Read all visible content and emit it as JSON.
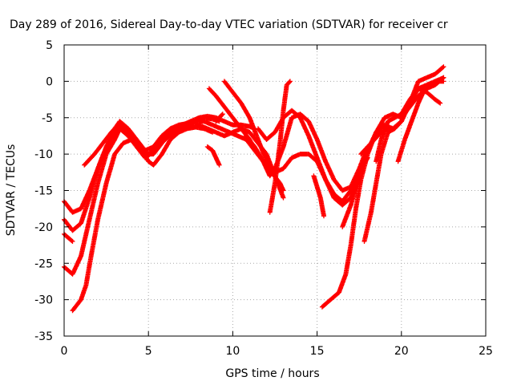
{
  "chart_data": {
    "type": "scatter",
    "title": "Day 289 of 2016, Sidereal Day-to-day VTEC variation (SDTVAR) for receiver cr",
    "xlabel": "GPS time / hours",
    "ylabel": "SDTVAR / TECUs",
    "xlim": [
      0,
      25
    ],
    "ylim": [
      -35,
      5
    ],
    "xticks": [
      "0",
      "5",
      "10",
      "15",
      "20",
      "25"
    ],
    "yticks": [
      "5",
      "0",
      "-5",
      "-10",
      "-15",
      "-20",
      "-25",
      "-30",
      "-35"
    ],
    "grid": true,
    "marker": "plus",
    "color": "#ff0000",
    "series": [
      {
        "values": [
          [
            0.0,
            -16.5
          ],
          [
            0.5,
            -18.0
          ],
          [
            1.0,
            -17.5
          ],
          [
            1.5,
            -15.0
          ],
          [
            2.0,
            -12.0
          ],
          [
            2.5,
            -9.0
          ],
          [
            3.0,
            -7.0
          ],
          [
            3.3,
            -6.5
          ],
          [
            3.8,
            -7.5
          ],
          [
            4.3,
            -9.0
          ],
          [
            4.8,
            -10.5
          ],
          [
            5.1,
            -10.0
          ],
          [
            5.5,
            -9.0
          ],
          [
            6.0,
            -8.0
          ],
          [
            6.5,
            -7.0
          ],
          [
            7.0,
            -6.5
          ],
          [
            7.5,
            -6.3
          ],
          [
            8.0,
            -6.0
          ],
          [
            8.5,
            -6.5
          ],
          [
            9.0,
            -7.0
          ],
          [
            9.5,
            -7.5
          ],
          [
            10.0,
            -7.0
          ],
          [
            10.5,
            -6.5
          ],
          [
            11.0,
            -7.0
          ],
          [
            11.5,
            -8.5
          ],
          [
            12.0,
            -10.0
          ],
          [
            12.5,
            -13.0
          ],
          [
            13.0,
            -16.0
          ]
        ]
      },
      {
        "values": [
          [
            0.0,
            -19.0
          ],
          [
            0.5,
            -20.5
          ],
          [
            1.0,
            -19.5
          ],
          [
            1.5,
            -16.0
          ],
          [
            2.0,
            -12.0
          ],
          [
            2.5,
            -9.0
          ],
          [
            3.0,
            -6.5
          ],
          [
            3.3,
            -5.5
          ],
          [
            3.8,
            -6.5
          ],
          [
            4.3,
            -8.0
          ],
          [
            4.8,
            -9.5
          ],
          [
            5.3,
            -9.0
          ],
          [
            5.8,
            -7.5
          ],
          [
            6.3,
            -6.5
          ],
          [
            6.8,
            -6.0
          ],
          [
            7.3,
            -5.8
          ],
          [
            7.8,
            -5.5
          ],
          [
            8.3,
            -5.0
          ],
          [
            8.8,
            -5.2
          ],
          [
            9.2,
            -5.5
          ]
        ]
      },
      {
        "values": [
          [
            0.0,
            -21.0
          ],
          [
            0.5,
            -22.0
          ]
        ]
      },
      {
        "values": [
          [
            0.0,
            -25.5
          ],
          [
            0.5,
            -26.5
          ],
          [
            1.0,
            -24.0
          ],
          [
            1.5,
            -19.0
          ],
          [
            2.0,
            -14.0
          ],
          [
            2.5,
            -10.0
          ],
          [
            3.0,
            -8.0
          ],
          [
            3.3,
            -6.5
          ],
          [
            3.8,
            -7.0
          ],
          [
            4.3,
            -8.5
          ],
          [
            4.8,
            -10.0
          ],
          [
            5.3,
            -10.0
          ],
          [
            5.8,
            -8.5
          ],
          [
            6.3,
            -7.0
          ],
          [
            6.8,
            -6.3
          ],
          [
            7.3,
            -6.0
          ],
          [
            7.8,
            -5.5
          ],
          [
            8.3,
            -5.5
          ],
          [
            8.8,
            -6.0
          ],
          [
            9.3,
            -6.5
          ],
          [
            9.8,
            -7.0
          ],
          [
            10.3,
            -7.5
          ],
          [
            10.8,
            -8.0
          ],
          [
            11.3,
            -9.5
          ],
          [
            11.8,
            -11.0
          ],
          [
            12.3,
            -12.5
          ],
          [
            12.8,
            -14.0
          ],
          [
            13.0,
            -15.0
          ]
        ]
      },
      {
        "values": [
          [
            0.5,
            -31.5
          ],
          [
            1.0,
            -30.0
          ],
          [
            1.3,
            -28.0
          ],
          [
            1.6,
            -24.0
          ],
          [
            2.0,
            -19.0
          ],
          [
            2.5,
            -14.0
          ],
          [
            3.0,
            -10.0
          ],
          [
            3.5,
            -8.5
          ],
          [
            4.0,
            -8.0
          ],
          [
            4.5,
            -9.0
          ],
          [
            5.0,
            -11.0
          ],
          [
            5.3,
            -11.5
          ],
          [
            5.8,
            -10.0
          ],
          [
            6.3,
            -8.0
          ],
          [
            6.8,
            -7.0
          ],
          [
            7.3,
            -6.5
          ],
          [
            7.8,
            -6.3
          ],
          [
            8.3,
            -6.5
          ],
          [
            8.8,
            -7.0
          ]
        ]
      },
      {
        "values": [
          [
            1.2,
            -11.5
          ],
          [
            1.8,
            -10.0
          ],
          [
            2.3,
            -8.5
          ],
          [
            2.8,
            -7.0
          ],
          [
            3.2,
            -6.0
          ],
          [
            3.6,
            -6.5
          ],
          [
            4.0,
            -8.0
          ],
          [
            4.5,
            -9.5
          ],
          [
            5.0,
            -10.0
          ],
          [
            5.5,
            -9.0
          ],
          [
            6.0,
            -7.5
          ],
          [
            6.5,
            -6.5
          ],
          [
            7.0,
            -6.0
          ],
          [
            7.5,
            -5.5
          ],
          [
            8.0,
            -5.0
          ],
          [
            8.5,
            -4.8
          ],
          [
            9.0,
            -5.0
          ],
          [
            9.5,
            -5.5
          ],
          [
            10.0,
            -6.0
          ],
          [
            10.5,
            -6.0
          ],
          [
            11.0,
            -6.2
          ],
          [
            11.3,
            -6.5
          ]
        ]
      },
      {
        "values": [
          [
            8.5,
            -9.0
          ],
          [
            8.8,
            -9.5
          ],
          [
            9.0,
            -10.5
          ],
          [
            9.2,
            -11.5
          ]
        ]
      },
      {
        "values": [
          [
            8.6,
            -1.0
          ],
          [
            9.0,
            -2.0
          ],
          [
            9.5,
            -3.5
          ],
          [
            10.0,
            -5.0
          ],
          [
            10.5,
            -6.5
          ],
          [
            11.0,
            -8.0
          ],
          [
            11.3,
            -9.5
          ]
        ]
      },
      {
        "values": [
          [
            9.0,
            -5.5
          ],
          [
            9.4,
            -4.5
          ]
        ]
      },
      {
        "values": [
          [
            9.5,
            0.0
          ],
          [
            10.0,
            -1.5
          ],
          [
            10.5,
            -3.0
          ],
          [
            11.0,
            -5.0
          ],
          [
            11.5,
            -8.0
          ],
          [
            12.0,
            -11.0
          ],
          [
            12.5,
            -12.5
          ],
          [
            13.0,
            -12.0
          ],
          [
            13.5,
            -10.5
          ],
          [
            14.0,
            -10.0
          ],
          [
            14.5,
            -10.0
          ],
          [
            15.0,
            -11.0
          ],
          [
            15.5,
            -13.5
          ],
          [
            16.0,
            -15.5
          ],
          [
            16.5,
            -16.5
          ],
          [
            17.0,
            -15.0
          ],
          [
            17.5,
            -12.5
          ],
          [
            18.0,
            -10.5
          ]
        ]
      },
      {
        "values": [
          [
            10.8,
            -7.5
          ],
          [
            11.3,
            -9.0
          ],
          [
            11.8,
            -11.0
          ],
          [
            12.2,
            -13.0
          ],
          [
            12.5,
            -12.0
          ],
          [
            13.0,
            -9.0
          ],
          [
            13.5,
            -5.0
          ],
          [
            14.0,
            -4.5
          ],
          [
            14.5,
            -5.5
          ],
          [
            15.0,
            -8.0
          ],
          [
            15.5,
            -11.0
          ],
          [
            16.0,
            -13.5
          ],
          [
            16.5,
            -15.0
          ],
          [
            17.0,
            -14.5
          ],
          [
            17.5,
            -12.0
          ],
          [
            18.0,
            -9.0
          ]
        ]
      },
      {
        "values": [
          [
            11.5,
            -6.5
          ],
          [
            12.0,
            -8.0
          ],
          [
            12.5,
            -7.0
          ],
          [
            13.0,
            -5.0
          ],
          [
            13.5,
            -4.0
          ],
          [
            14.0,
            -5.0
          ],
          [
            14.5,
            -7.5
          ],
          [
            15.0,
            -10.5
          ],
          [
            15.5,
            -13.5
          ],
          [
            16.0,
            -16.0
          ],
          [
            16.5,
            -17.0
          ],
          [
            17.0,
            -16.0
          ],
          [
            17.3,
            -14.5
          ]
        ]
      },
      {
        "values": [
          [
            12.2,
            -18.0
          ],
          [
            12.5,
            -14.0
          ],
          [
            12.8,
            -8.5
          ],
          [
            13.0,
            -4.0
          ],
          [
            13.2,
            -0.5
          ],
          [
            13.4,
            0.0
          ]
        ]
      },
      {
        "values": [
          [
            14.8,
            -13.0
          ],
          [
            15.0,
            -14.5
          ],
          [
            15.2,
            -16.0
          ],
          [
            15.4,
            -18.5
          ]
        ]
      },
      {
        "values": [
          [
            15.3,
            -31.0
          ],
          [
            15.8,
            -30.0
          ],
          [
            16.3,
            -29.0
          ],
          [
            16.7,
            -26.5
          ],
          [
            17.0,
            -22.5
          ],
          [
            17.3,
            -17.5
          ],
          [
            17.6,
            -13.5
          ],
          [
            18.0,
            -10.0
          ],
          [
            18.5,
            -7.0
          ],
          [
            19.0,
            -5.0
          ],
          [
            19.5,
            -4.5
          ],
          [
            20.0,
            -5.0
          ],
          [
            20.5,
            -3.5
          ],
          [
            21.0,
            -2.0
          ],
          [
            21.5,
            -1.0
          ],
          [
            22.0,
            -0.5
          ],
          [
            22.5,
            0.5
          ]
        ]
      },
      {
        "values": [
          [
            16.5,
            -20.0
          ],
          [
            17.0,
            -17.0
          ],
          [
            17.5,
            -13.0
          ],
          [
            18.0,
            -9.5
          ],
          [
            18.5,
            -7.0
          ],
          [
            19.0,
            -6.0
          ],
          [
            19.5,
            -6.5
          ],
          [
            20.0,
            -5.5
          ],
          [
            20.5,
            -3.0
          ],
          [
            21.0,
            -1.0
          ],
          [
            21.5,
            -0.5
          ],
          [
            22.0,
            0.0
          ],
          [
            22.5,
            0.5
          ]
        ]
      },
      {
        "values": [
          [
            17.8,
            -22.0
          ],
          [
            18.2,
            -18.0
          ],
          [
            18.5,
            -14.0
          ],
          [
            18.8,
            -10.0
          ],
          [
            19.2,
            -7.0
          ],
          [
            19.6,
            -6.5
          ],
          [
            20.0,
            -5.5
          ],
          [
            20.5,
            -3.0
          ],
          [
            21.0,
            0.0
          ],
          [
            21.5,
            0.5
          ],
          [
            22.0,
            1.0
          ],
          [
            22.5,
            2.0
          ]
        ]
      },
      {
        "values": [
          [
            18.5,
            -11.0
          ],
          [
            18.8,
            -8.0
          ],
          [
            19.2,
            -5.5
          ],
          [
            19.6,
            -5.0
          ],
          [
            20.0,
            -4.5
          ],
          [
            20.5,
            -2.5
          ],
          [
            21.0,
            -1.0
          ],
          [
            21.5,
            -1.5
          ],
          [
            22.0,
            -2.5
          ],
          [
            22.3,
            -3.0
          ]
        ]
      },
      {
        "values": [
          [
            19.8,
            -11.0
          ],
          [
            20.2,
            -8.0
          ],
          [
            20.6,
            -5.5
          ],
          [
            21.0,
            -3.0
          ],
          [
            21.4,
            -1.0
          ],
          [
            21.8,
            -0.5
          ],
          [
            22.2,
            0.0
          ],
          [
            22.5,
            0.0
          ]
        ]
      },
      {
        "values": [
          [
            17.6,
            -10.0
          ],
          [
            18.0,
            -9.0
          ],
          [
            18.4,
            -8.0
          ],
          [
            18.8,
            -7.0
          ],
          [
            19.2,
            -6.5
          ]
        ]
      }
    ]
  }
}
